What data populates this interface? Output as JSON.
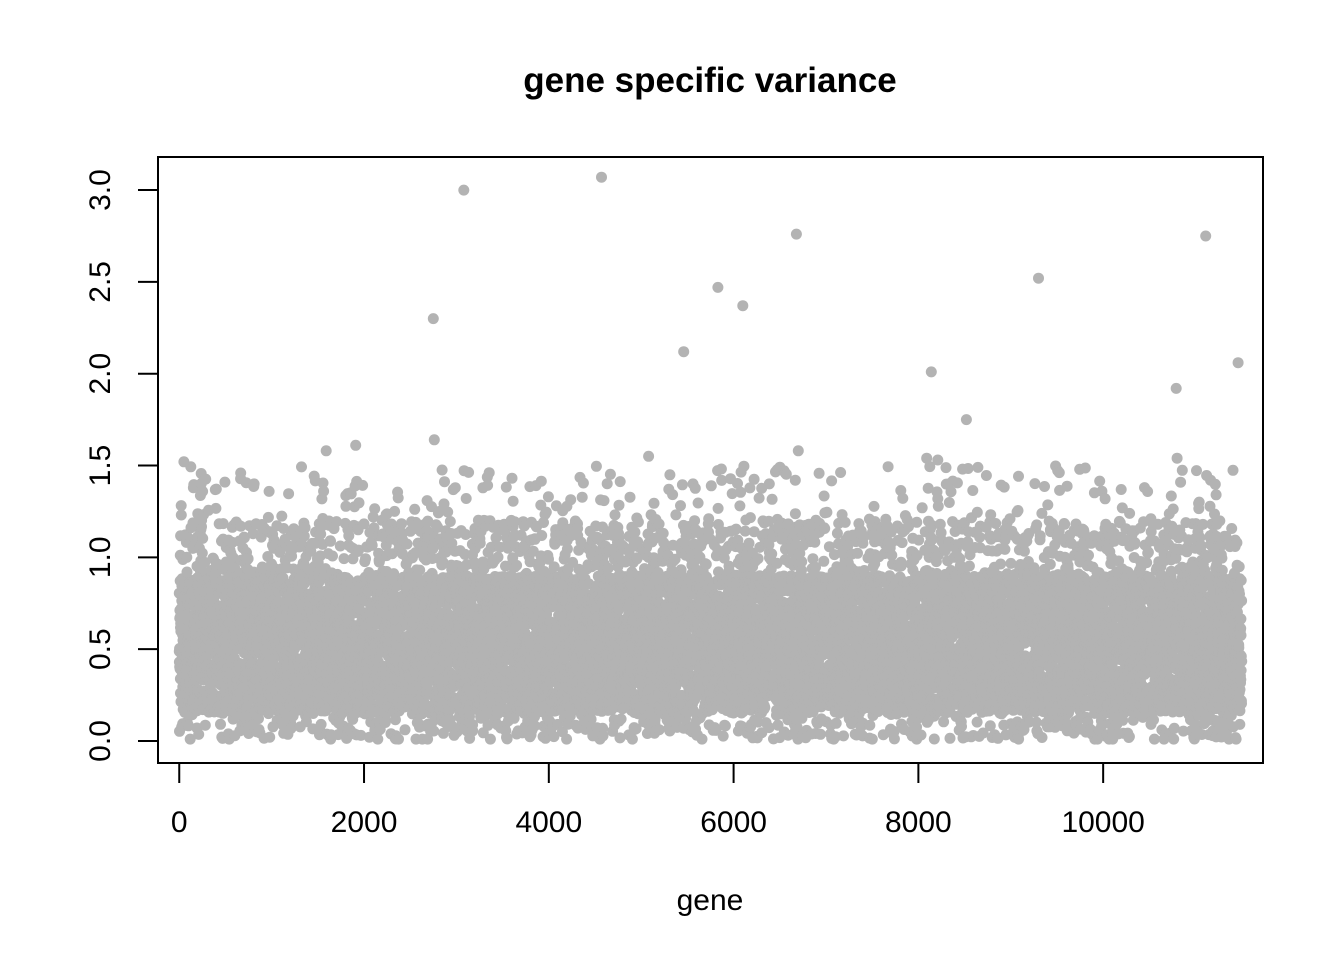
{
  "chart_data": {
    "type": "scatter",
    "title": "gene specific variance",
    "xlabel": "gene",
    "ylabel": "",
    "xlim": [
      -230,
      11730
    ],
    "ylim": [
      -0.12,
      3.18
    ],
    "xticks": [
      0,
      2000,
      4000,
      6000,
      8000,
      10000
    ],
    "xtick_labels": [
      "0",
      "2000",
      "4000",
      "6000",
      "8000",
      "10000"
    ],
    "yticks": [
      0.0,
      0.5,
      1.0,
      1.5,
      2.0,
      2.5,
      3.0
    ],
    "ytick_labels": [
      "0.0",
      "0.5",
      "1.0",
      "1.5",
      "2.0",
      "2.5",
      "3.0"
    ],
    "grid": false,
    "legend": "none",
    "point_color": "#b3b3b3",
    "n_genes": 11500,
    "bulk_range": [
      0.0,
      1.5
    ],
    "outliers": {
      "x": [
        2750,
        3080,
        4570,
        5460,
        5830,
        6100,
        6680,
        9300,
        8140,
        11110,
        10790,
        11460,
        8520,
        2760,
        6700,
        1910,
        1590,
        5080,
        8090,
        8210,
        10800,
        50
      ],
      "y": [
        2.3,
        3.0,
        3.07,
        2.12,
        2.47,
        2.37,
        2.76,
        2.52,
        2.01,
        2.75,
        1.92,
        2.06,
        1.75,
        1.64,
        1.58,
        1.61,
        1.58,
        1.55,
        1.54,
        1.53,
        1.54,
        1.52
      ]
    }
  }
}
